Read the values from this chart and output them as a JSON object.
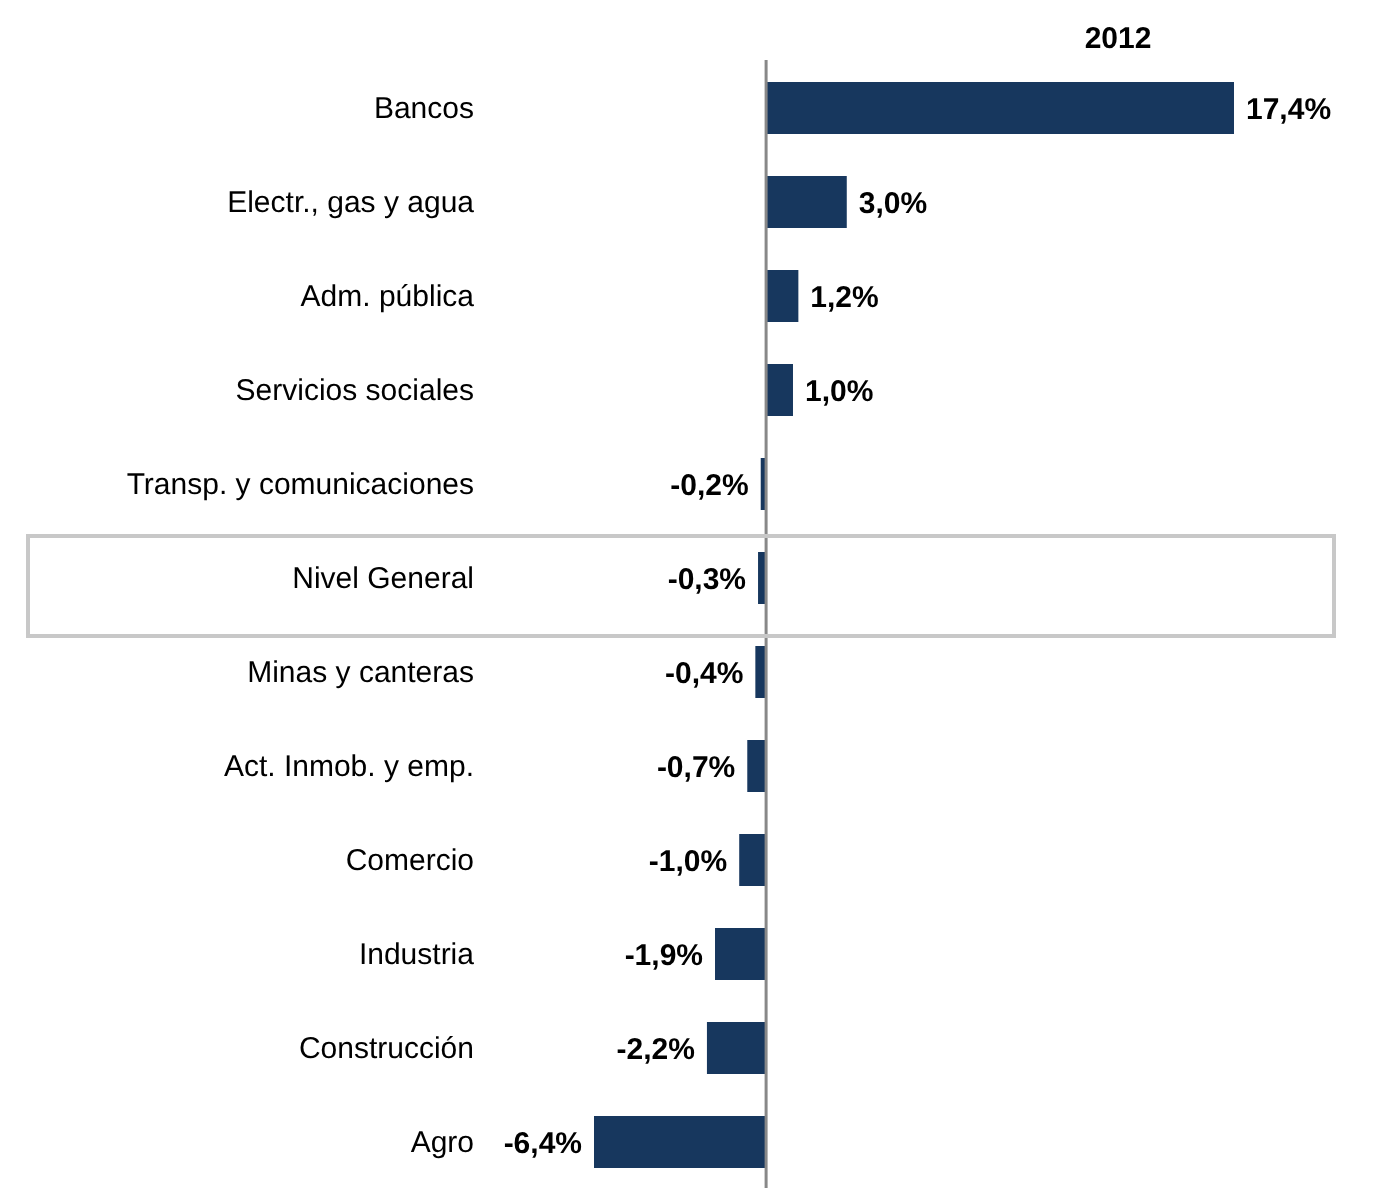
{
  "chart_data": {
    "type": "bar",
    "orientation": "horizontal",
    "title": "2012",
    "categories": [
      "Bancos",
      "Electr., gas y agua",
      "Adm. pública",
      "Servicios sociales",
      "Transp. y comunicaciones",
      "Nivel General",
      "Minas y canteras",
      "Act. Inmob. y emp.",
      "Comercio",
      "Industria",
      "Construcción",
      "Agro"
    ],
    "values": [
      17.4,
      3.0,
      1.2,
      1.0,
      -0.2,
      -0.3,
      -0.4,
      -0.7,
      -1.0,
      -1.9,
      -2.2,
      -6.4
    ],
    "value_labels": [
      "17,4%",
      "3,0%",
      "1,2%",
      "1,0%",
      "-0,2%",
      "-0,3%",
      "-0,4%",
      "-0,7%",
      "-1,0%",
      "-1,9%",
      "-2,2%",
      "-6,4%"
    ],
    "color": "#17375e"
  }
}
